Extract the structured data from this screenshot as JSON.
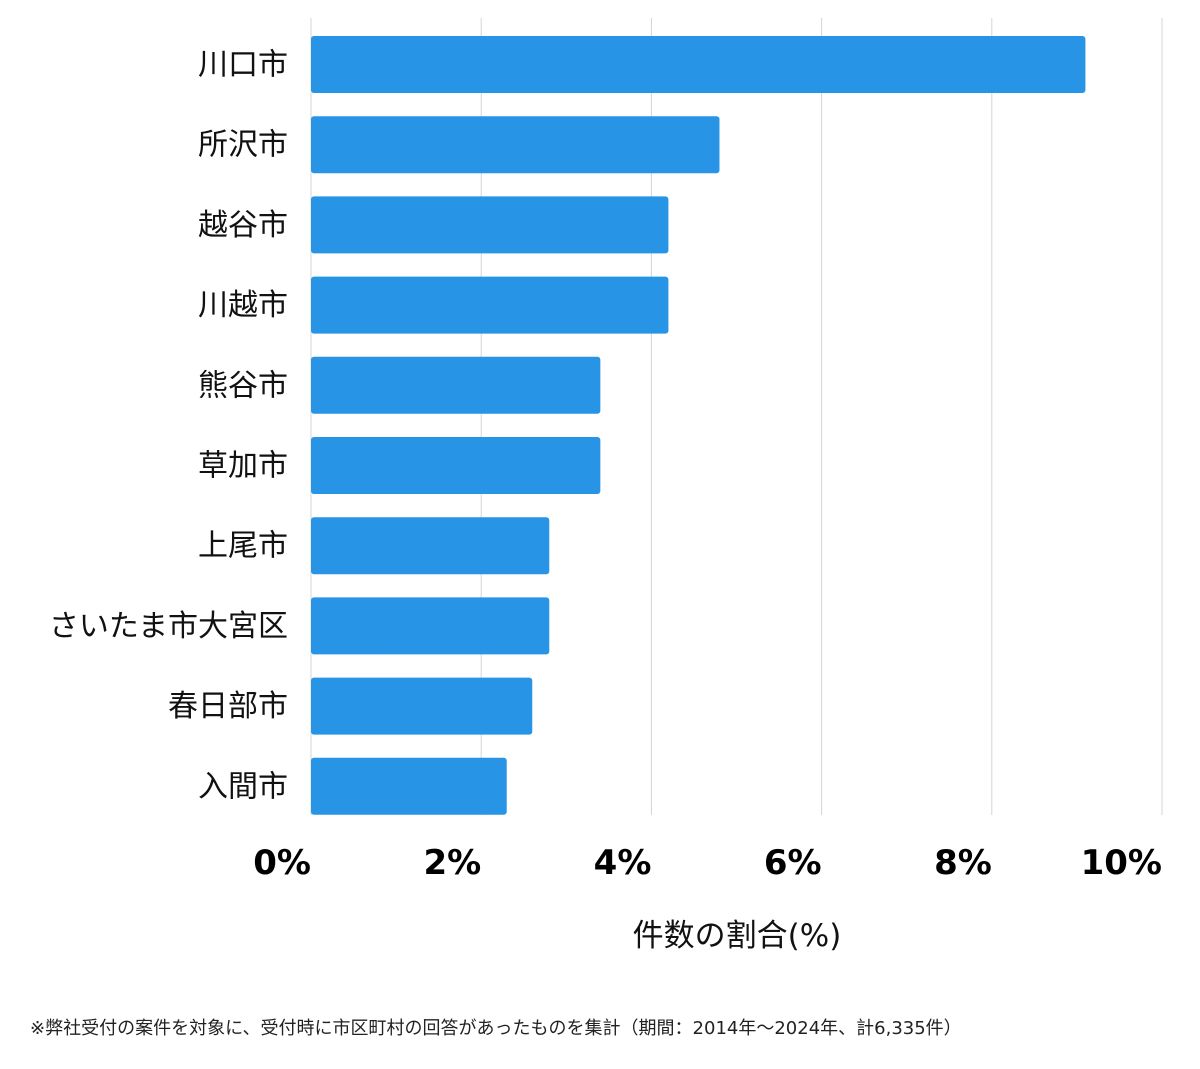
{
  "chart_data": {
    "type": "bar",
    "orientation": "horizontal",
    "categories": [
      "川口市",
      "所沢市",
      "越谷市",
      "川越市",
      "熊谷市",
      "草加市",
      "上尾市",
      "さいたま市大宮区",
      "春日部市",
      "入間市"
    ],
    "values": [
      9.1,
      4.8,
      4.2,
      4.2,
      3.4,
      3.4,
      2.8,
      2.8,
      2.6,
      2.3
    ],
    "xlim": [
      0,
      10
    ],
    "x_ticks": [
      0,
      2,
      4,
      6,
      8,
      10
    ],
    "x_tick_labels": [
      "0%",
      "2%",
      "4%",
      "6%",
      "8%",
      "10%"
    ],
    "xlabel": "件数の割合(%)",
    "ylabel": "",
    "title": "",
    "bar_color": "#2794E6",
    "grid": true,
    "grid_color": "#d4d4d4"
  },
  "footnote": "※弊社受付の案件を対象に、受付時に市区町村の回答があったものを集計（期間：2014年〜2024年、計6,335件）"
}
